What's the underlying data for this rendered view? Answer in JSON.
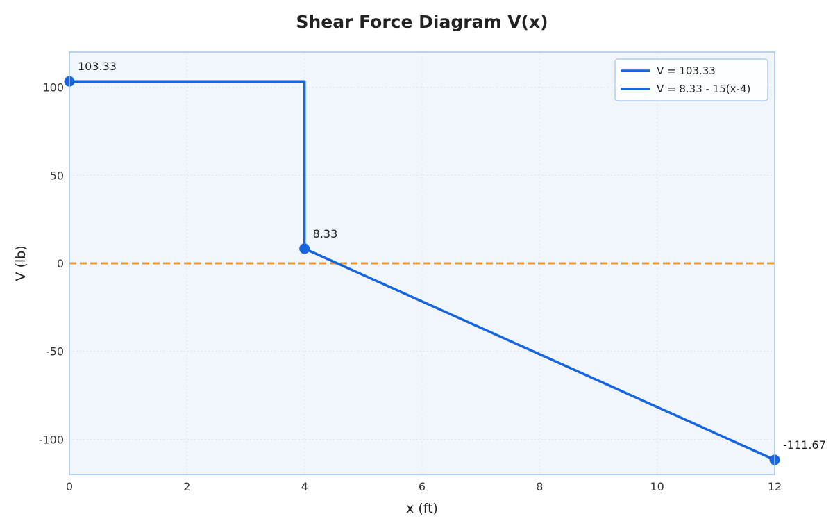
{
  "chart_data": {
    "type": "line",
    "title": "Shear Force Diagram V(x)",
    "xlabel": "x (ft)",
    "ylabel": "V (lb)",
    "xlim": [
      0,
      12
    ],
    "ylim": [
      -120,
      120
    ],
    "xticks": [
      0,
      2,
      4,
      6,
      8,
      10,
      12
    ],
    "yticks": [
      -100,
      -50,
      0,
      50,
      100
    ],
    "grid": true,
    "legend_position": "top-right",
    "colors": {
      "series": "#1565e0",
      "zero_line": "#f0962e",
      "plot_bg": "#f1f6fd",
      "frame": "#9fc3f2",
      "grid": "#d9e4f2"
    },
    "series": [
      {
        "name": "V = 103.33",
        "x": [
          0,
          4
        ],
        "y": [
          103.33,
          103.33
        ]
      },
      {
        "name": "V = 8.33 - 15(x-4)",
        "x": [
          4,
          12
        ],
        "y": [
          8.33,
          -111.67
        ]
      }
    ],
    "connector": {
      "x": [
        4,
        4
      ],
      "y": [
        103.33,
        8.33
      ]
    },
    "markers": [
      {
        "x": 0,
        "y": 103.33
      },
      {
        "x": 4,
        "y": 8.33
      },
      {
        "x": 12,
        "y": -111.67
      }
    ],
    "annotations": [
      {
        "x": 0,
        "y": 103.33,
        "text": "103.33"
      },
      {
        "x": 4,
        "y": 8.33,
        "text": "8.33"
      },
      {
        "x": 12,
        "y": -111.67,
        "text": "-111.67"
      }
    ],
    "reference_line": {
      "y": 0,
      "style": "dashed"
    }
  }
}
